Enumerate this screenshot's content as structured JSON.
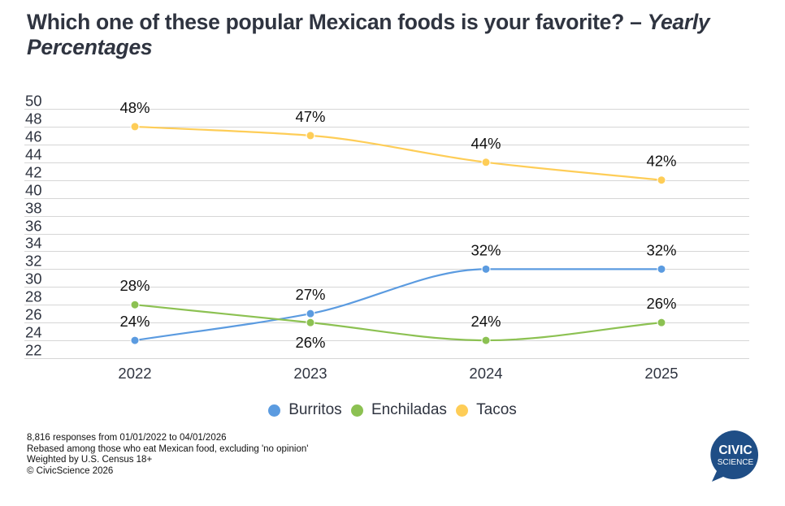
{
  "title": {
    "main": "Which one of these popular Mexican foods is your favorite? – ",
    "italic": "Yearly Percentages"
  },
  "chart_data": {
    "type": "line",
    "title": "Which one of these popular Mexican foods is your favorite? – Yearly Percentages",
    "xlabel": "",
    "ylabel": "",
    "categories": [
      "2022",
      "2023",
      "2024",
      "2025"
    ],
    "ylim": [
      22,
      50
    ],
    "yticks": [
      50,
      48,
      46,
      44,
      42,
      40,
      38,
      36,
      34,
      32,
      30,
      28,
      26,
      24,
      22
    ],
    "grid": true,
    "legend_position": "bottom-center",
    "series": [
      {
        "name": "Burritos",
        "color": "#5b9be0",
        "values": [
          24,
          27,
          32,
          32
        ],
        "labels": [
          "24%",
          "27%",
          "32%",
          "32%"
        ],
        "label_pos": [
          "above",
          "above",
          "above",
          "above"
        ]
      },
      {
        "name": "Enchiladas",
        "color": "#8cc152",
        "values": [
          28,
          26,
          24,
          26
        ],
        "labels": [
          "28%",
          "26%",
          "24%",
          "26%"
        ],
        "label_pos": [
          "above",
          "below",
          "above",
          "above"
        ]
      },
      {
        "name": "Tacos",
        "color": "#fecd57",
        "values": [
          48,
          47,
          44,
          42
        ],
        "labels": [
          "48%",
          "47%",
          "44%",
          "42%"
        ],
        "label_pos": [
          "above",
          "above",
          "above",
          "above"
        ]
      }
    ]
  },
  "legend": [
    {
      "label": "Burritos",
      "color": "#5b9be0"
    },
    {
      "label": "Enchiladas",
      "color": "#8cc152"
    },
    {
      "label": "Tacos",
      "color": "#fecd57"
    }
  ],
  "footer": [
    "8,816 responses from 01/01/2022 to 04/01/2026",
    "Rebased among those who eat Mexican food, excluding 'no opinion'",
    "Weighted by U.S. Census 18+",
    "© CivicScience 2026"
  ],
  "logo": {
    "line1": "CIVIC",
    "line2": "SCIENCE",
    "color": "#1f4e86"
  }
}
